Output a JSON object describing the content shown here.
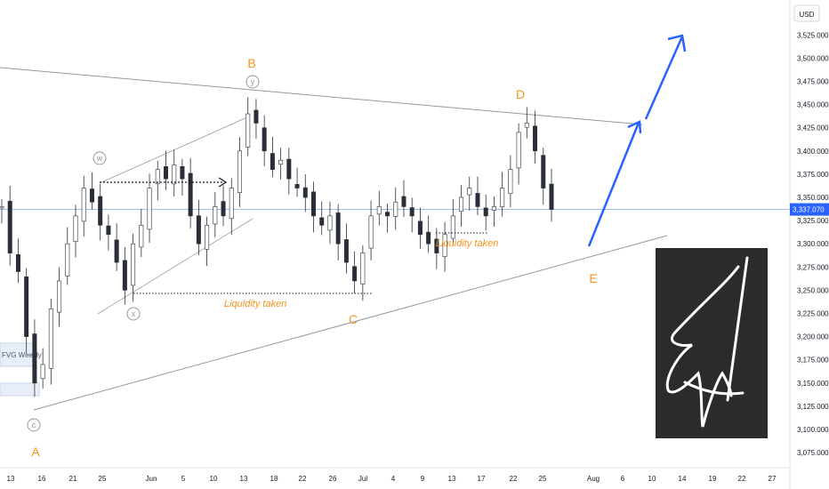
{
  "chart_data": {
    "type": "candlestick",
    "currency": "USD",
    "current_price": "3,337.070",
    "y_ticks": [
      3075,
      3100,
      3125,
      3150,
      3175,
      3200,
      3225,
      3250,
      3275,
      3300,
      3325,
      3350,
      3375,
      3400,
      3425,
      3450,
      3475,
      3500,
      3525
    ],
    "y_tick_labels": [
      "3,075.000",
      "3,100.000",
      "3,125.000",
      "3,150.000",
      "3,175.000",
      "3,200.000",
      "3,225.000",
      "3,250.000",
      "3,275.000",
      "3,300.000",
      "3,325.000",
      "3,350.000",
      "3,375.000",
      "3,400.000",
      "3,425.000",
      "3,450.000",
      "3,475.000",
      "3,500.000",
      "3,525.000"
    ],
    "x_tick_labels": [
      "13",
      "16",
      "21",
      "25",
      "Jun",
      "5",
      "10",
      "13",
      "18",
      "22",
      "26",
      "Jul",
      "4",
      "9",
      "13",
      "17",
      "22",
      "25",
      "Aug",
      "6",
      "10",
      "14",
      "19",
      "22",
      "27"
    ],
    "wave_labels": [
      "A",
      "B",
      "C",
      "D",
      "E"
    ],
    "sub_wave_labels": [
      "w",
      "x",
      "y",
      "c"
    ],
    "annotations": [
      "Liquidity taken",
      "Liquidity taken",
      "FVG Weekly"
    ],
    "close_path": [
      [
        13,
        3340
      ],
      [
        14,
        3290
      ],
      [
        15,
        3270
      ],
      [
        16,
        3200
      ],
      [
        17,
        3150
      ],
      [
        18,
        3170
      ],
      [
        19,
        3230
      ],
      [
        20,
        3260
      ],
      [
        21,
        3300
      ],
      [
        22,
        3330
      ],
      [
        23,
        3360
      ],
      [
        24,
        3345
      ],
      [
        25,
        3320
      ],
      [
        26,
        3310
      ],
      [
        27,
        3280
      ],
      [
        28,
        3250
      ],
      [
        29,
        3300
      ],
      [
        30,
        3320
      ],
      [
        31,
        3360
      ],
      [
        32,
        3380
      ],
      [
        33,
        3370
      ],
      [
        34,
        3385
      ],
      [
        35,
        3370
      ],
      [
        36,
        3330
      ],
      [
        37,
        3300
      ],
      [
        38,
        3320
      ],
      [
        39,
        3340
      ],
      [
        40,
        3330
      ],
      [
        41,
        3360
      ],
      [
        42,
        3400
      ],
      [
        43,
        3440
      ],
      [
        44,
        3430
      ],
      [
        45,
        3400
      ],
      [
        46,
        3380
      ],
      [
        47,
        3390
      ],
      [
        48,
        3370
      ],
      [
        49,
        3360
      ],
      [
        50,
        3350
      ],
      [
        51,
        3330
      ],
      [
        52,
        3320
      ],
      [
        53,
        3330
      ],
      [
        54,
        3300
      ],
      [
        55,
        3280
      ],
      [
        56,
        3260
      ],
      [
        57,
        3290
      ],
      [
        58,
        3330
      ],
      [
        59,
        3340
      ],
      [
        60,
        3330
      ],
      [
        61,
        3345
      ],
      [
        62,
        3340
      ],
      [
        63,
        3330
      ],
      [
        64,
        3310
      ],
      [
        65,
        3300
      ],
      [
        66,
        3290
      ],
      [
        67,
        3310
      ],
      [
        68,
        3330
      ],
      [
        69,
        3350
      ],
      [
        70,
        3360
      ],
      [
        71,
        3340
      ],
      [
        72,
        3330
      ],
      [
        73,
        3340
      ],
      [
        74,
        3360
      ],
      [
        75,
        3380
      ],
      [
        76,
        3420
      ],
      [
        77,
        3430
      ],
      [
        78,
        3400
      ],
      [
        79,
        3360
      ],
      [
        80,
        3337
      ]
    ],
    "projection": [
      [
        80,
        3337
      ],
      [
        88,
        3290
      ],
      [
        94,
        3425
      ],
      [
        99,
        3510
      ]
    ],
    "forecast_note": "projected path from D down to E then up"
  }
}
